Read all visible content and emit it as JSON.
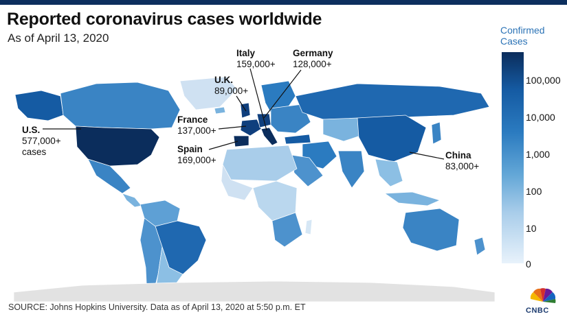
{
  "header": {
    "title": "Reported coronavirus cases worldwide",
    "subtitle": "As of April 13, 2020"
  },
  "callouts": [
    {
      "name": "U.S.",
      "value": "577,000+",
      "extra": "cases"
    },
    {
      "name": "U.K.",
      "value": "89,000+"
    },
    {
      "name": "Italy",
      "value": "159,000+"
    },
    {
      "name": "Germany",
      "value": "128,000+"
    },
    {
      "name": "France",
      "value": "137,000+"
    },
    {
      "name": "Spain",
      "value": "169,000+"
    },
    {
      "name": "China",
      "value": "83,000+"
    }
  ],
  "legend": {
    "title_line1": "Confirmed",
    "title_line2": "Cases",
    "ticks": [
      "100,000",
      "10,000",
      "1,000",
      "100",
      "10",
      "0"
    ],
    "colors": [
      "#0b2d5c",
      "#155ba3",
      "#2b7bc0",
      "#63a7d7",
      "#a9cdea",
      "#e8f2fb"
    ]
  },
  "footer": {
    "source": "SOURCE: Johns Hopkins University. Data as of April 13, 2020 at 5:50 p.m. ET",
    "logo_text": "CNBC"
  },
  "colors": {
    "top_bar": "#0d2f5e",
    "antarctica": "#e2e2e2",
    "no_data": "#d9d9d9"
  }
}
